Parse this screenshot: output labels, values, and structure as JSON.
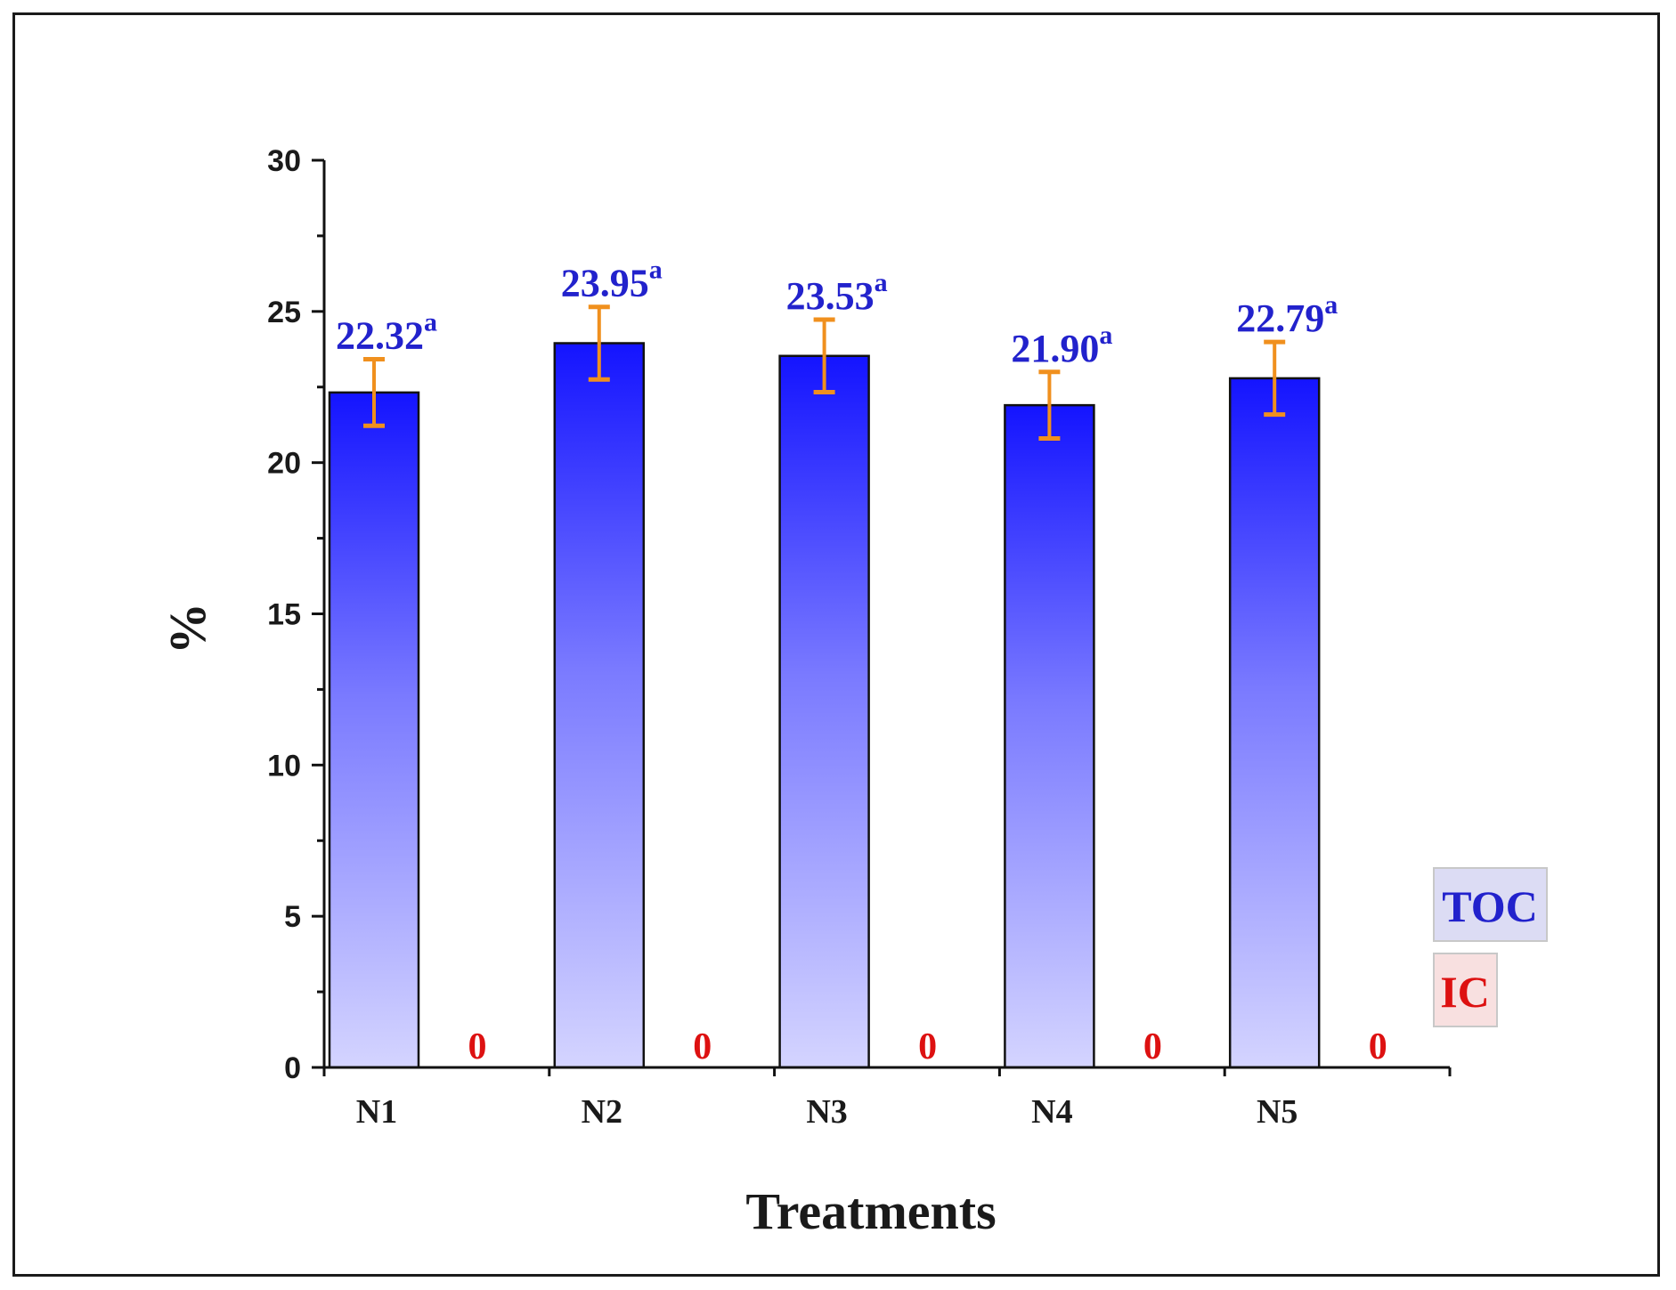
{
  "chart_data": {
    "type": "bar",
    "title": "",
    "xlabel": "Treatments",
    "ylabel": "%",
    "ylim": [
      0,
      30
    ],
    "yticks": [
      0,
      5,
      10,
      15,
      20,
      25,
      30
    ],
    "categories": [
      "N1",
      "N2",
      "N3",
      "N4",
      "N5"
    ],
    "series": [
      {
        "name": "TOC",
        "values": [
          22.32,
          23.95,
          23.53,
          21.9,
          22.79
        ],
        "labels": [
          "22.32",
          "23.95",
          "23.53",
          "21.90",
          "22.79"
        ],
        "errors": [
          1.1,
          1.2,
          1.2,
          1.1,
          1.2
        ],
        "significance": [
          "a",
          "a",
          "a",
          "a",
          "a"
        ],
        "color": "#1a1aff"
      },
      {
        "name": "IC",
        "values": [
          0,
          0,
          0,
          0,
          0
        ],
        "labels": [
          "0",
          "0",
          "0",
          "0",
          "0"
        ],
        "color": "#dd1111"
      }
    ],
    "legend": {
      "position": "bottom-right",
      "entries": [
        "TOC",
        "IC"
      ]
    },
    "grid": false
  },
  "colors": {
    "toc_text": "#2222cc",
    "ic_text": "#dd1111",
    "error_bar": "#f0901e",
    "legend_toc_bg": "#dcdcf4",
    "legend_ic_bg": "#f8e0e0"
  }
}
